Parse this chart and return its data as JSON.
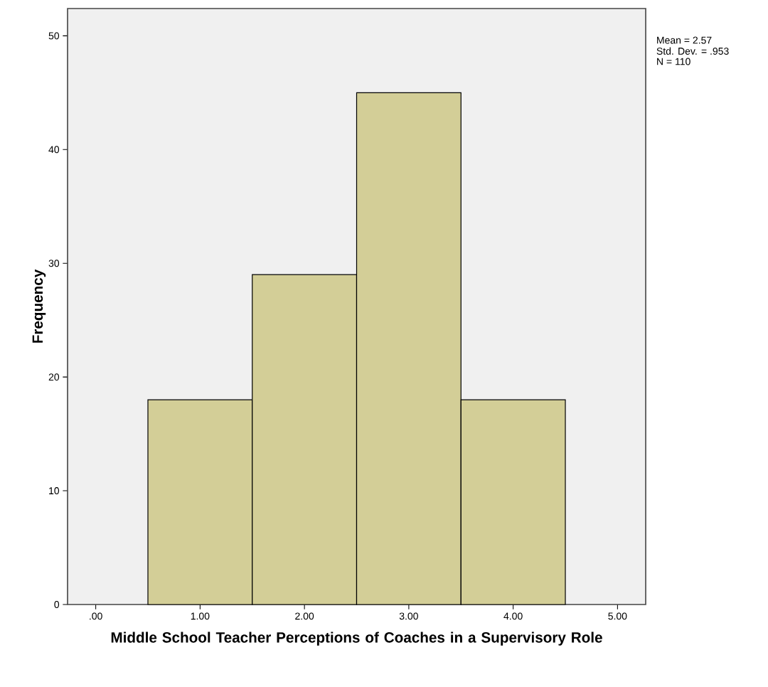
{
  "chart_data": {
    "type": "histogram",
    "xlabel": "Middle School Teacher Perceptions of Coaches in a Supervisory Role",
    "ylabel": "Frequency",
    "annotations": [
      "Mean = 2.57",
      "Std. Dev. = .953",
      "N = 110"
    ],
    "bins": [
      0.5,
      1.5,
      2.5,
      3.5,
      4.5
    ],
    "values": [
      18,
      29,
      45,
      18
    ],
    "color": "#d3ce97",
    "xlim": [
      -0.27,
      5.27
    ],
    "ylim": [
      0,
      52.4
    ],
    "xticks": [
      {
        "value": 0,
        "label": ".00"
      },
      {
        "value": 1,
        "label": "1.00"
      },
      {
        "value": 2,
        "label": "2.00"
      },
      {
        "value": 3,
        "label": "3.00"
      },
      {
        "value": 4,
        "label": "4.00"
      },
      {
        "value": 5,
        "label": "5.00"
      }
    ],
    "yticks": [
      0,
      10,
      20,
      30,
      40,
      50
    ]
  }
}
